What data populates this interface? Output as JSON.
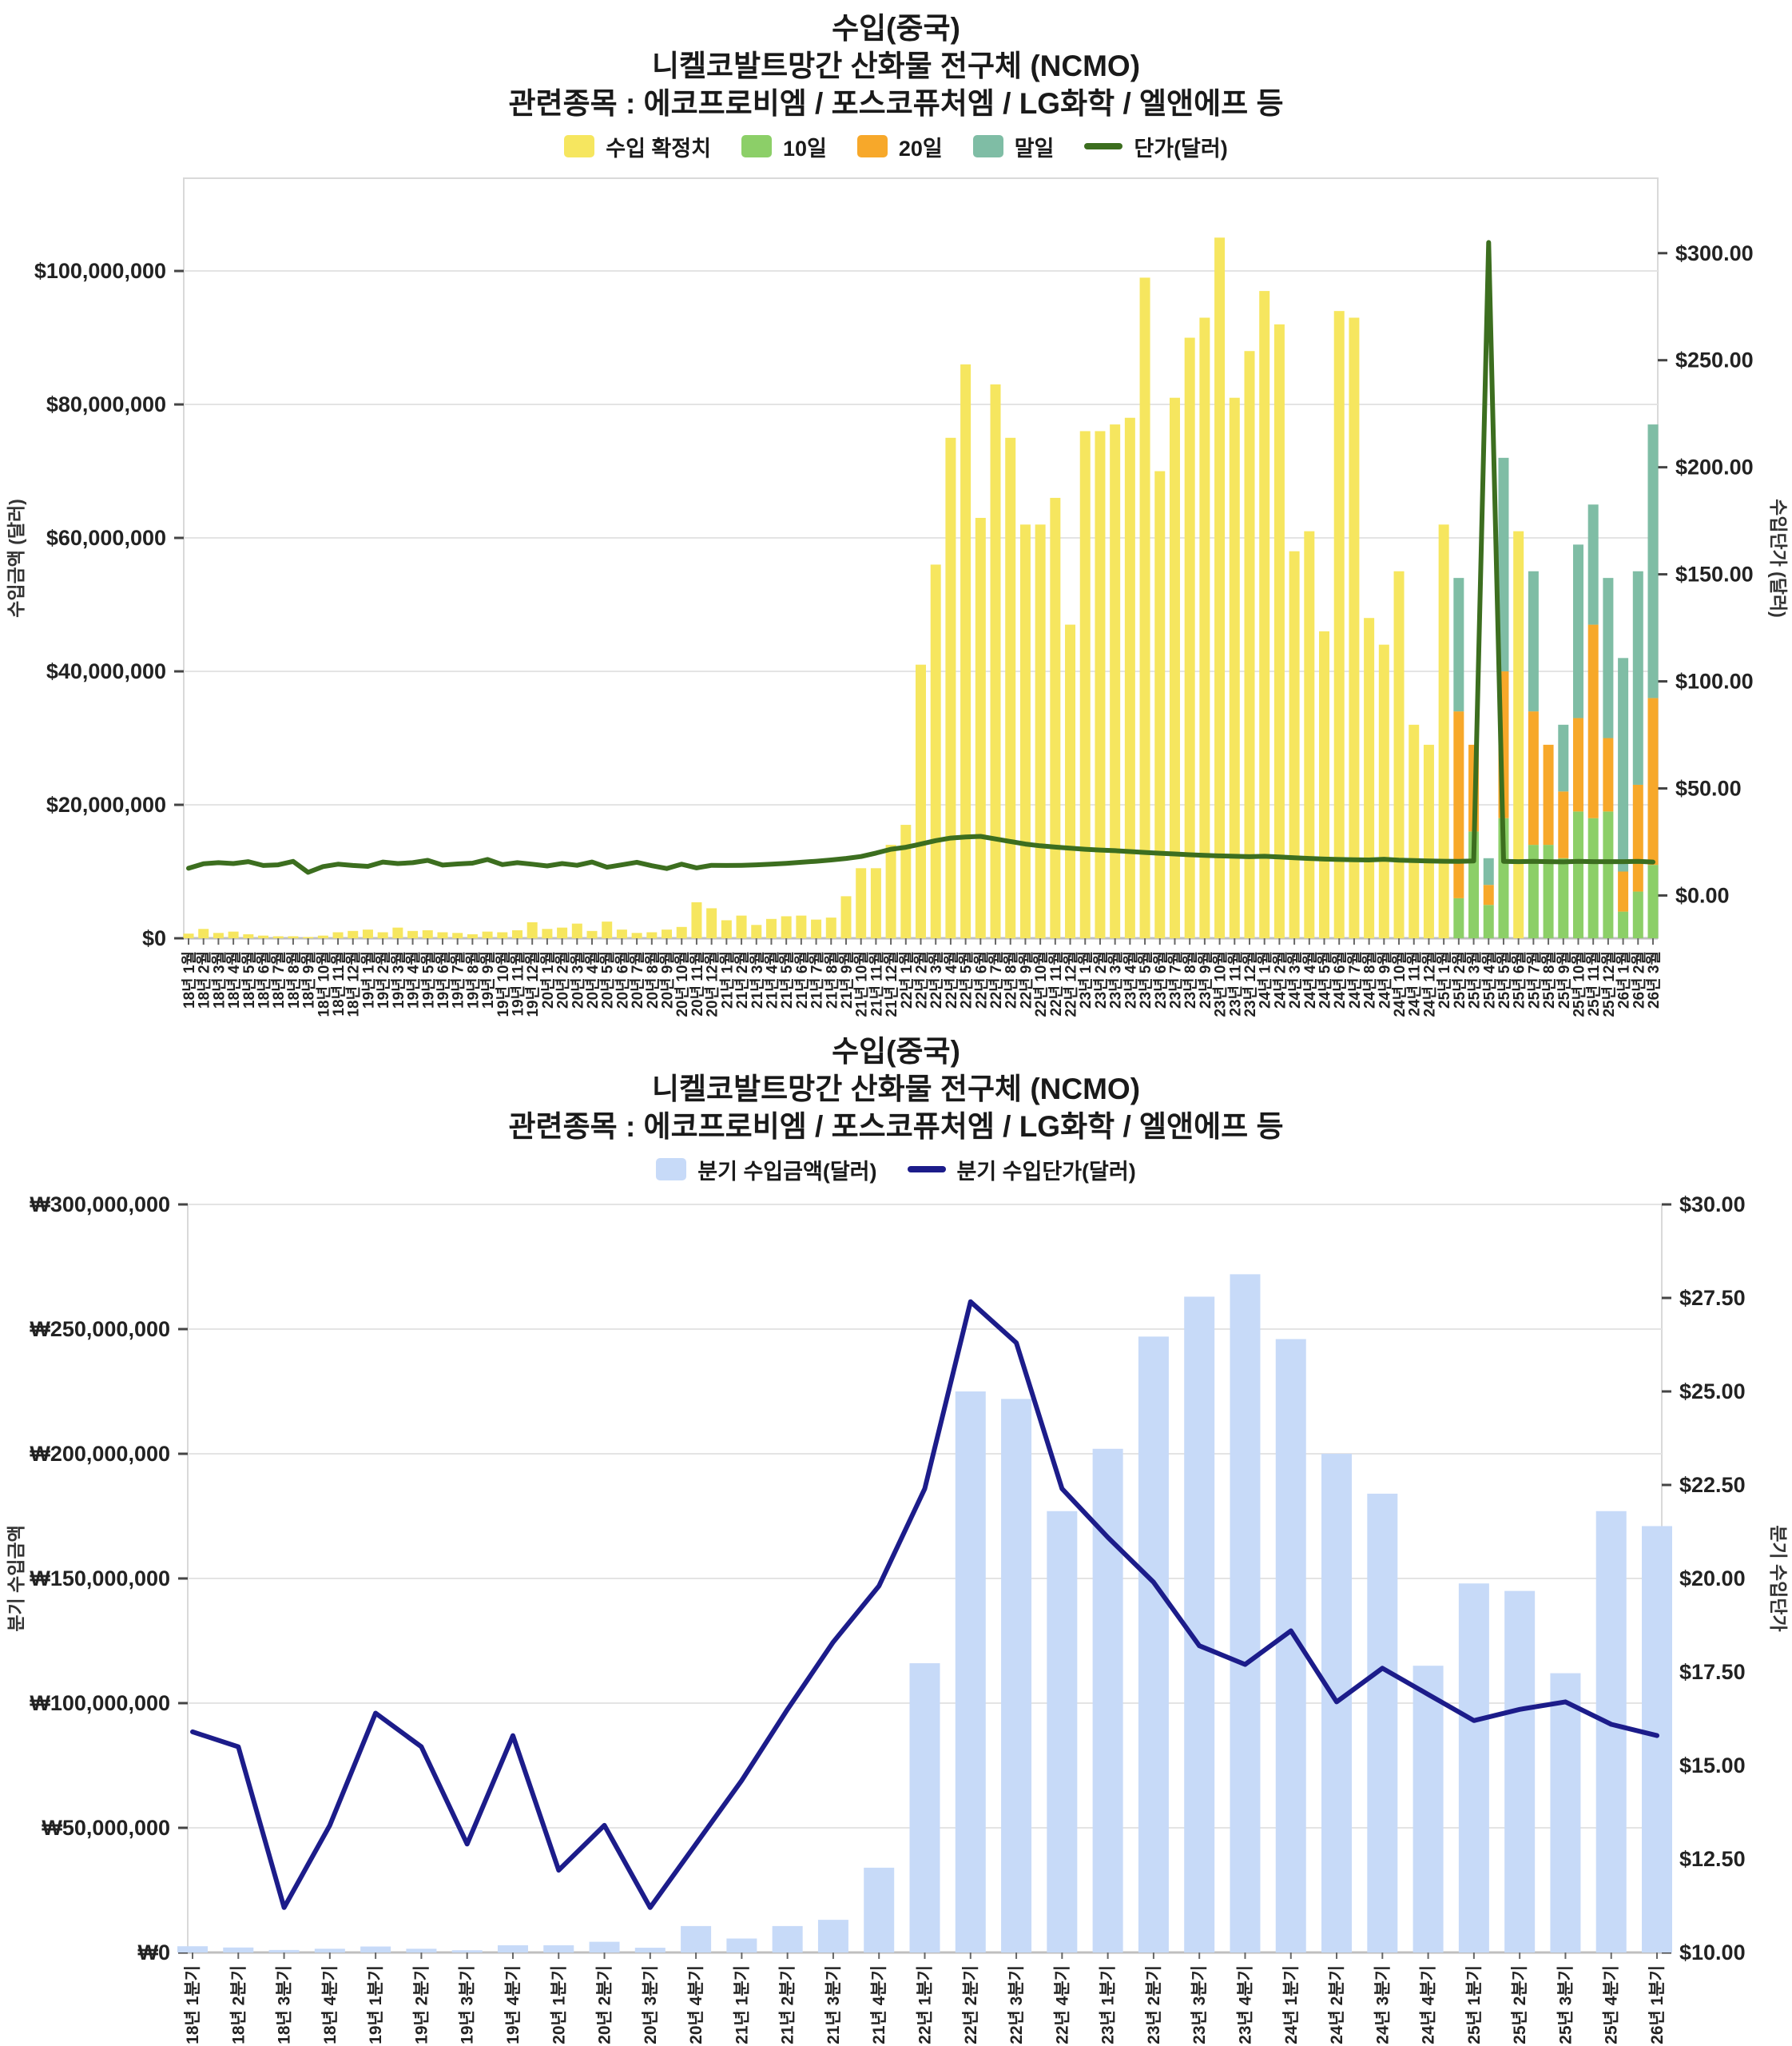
{
  "page_title": "수입(중국) 니켈코발트망간 산화물 전구체 (NCMO)",
  "chart_data": [
    {
      "type": "bar",
      "subtype": "stacked-bar-with-line",
      "title_lines": [
        "수입(중국)",
        "니켈코발트망간 산화물 전구체 (NCMO)",
        "관련종목 : 에코프로비엠 / 포스코퓨처엠 / LG화학 / 엘앤에프 등"
      ],
      "legend_position": "top",
      "grid": true,
      "y_left": {
        "title": "수입금액 (달러)",
        "unit": "USD",
        "ticks": [
          "$0",
          "$20,000,000",
          "$40,000,000",
          "$60,000,000",
          "$80,000,000",
          "$100,000,000"
        ],
        "tick_values_musd": [
          0,
          20,
          40,
          60,
          80,
          100
        ],
        "max_musd": 113.9
      },
      "y_right": {
        "title": "수입단가 (달러)",
        "unit": "USD",
        "ticks": [
          "$0.00",
          "$50.00",
          "$100.00",
          "$150.00",
          "$200.00",
          "$250.00",
          "$300.00"
        ],
        "tick_values_usd": [
          0,
          50,
          100,
          150,
          200,
          250,
          300
        ],
        "domain_usd": [
          -20,
          335
        ]
      },
      "categories": [
        "18년 1월",
        "18년 2월",
        "18년 3월",
        "18년 4월",
        "18년 5월",
        "18년 6월",
        "18년 7월",
        "18년 8월",
        "18년 9월",
        "18년 10월",
        "18년 11월",
        "18년 12월",
        "19년 1월",
        "19년 2월",
        "19년 3월",
        "19년 4월",
        "19년 5월",
        "19년 6월",
        "19년 7월",
        "19년 8월",
        "19년 9월",
        "19년 10월",
        "19년 11월",
        "19년 12월",
        "20년 1월",
        "20년 2월",
        "20년 3월",
        "20년 4월",
        "20년 5월",
        "20년 6월",
        "20년 7월",
        "20년 8월",
        "20년 9월",
        "20년 10월",
        "20년 11월",
        "20년 12월",
        "21년 1월",
        "21년 2월",
        "21년 3월",
        "21년 4월",
        "21년 5월",
        "21년 6월",
        "21년 7월",
        "21년 8월",
        "21년 9월",
        "21년 10월",
        "21년 11월",
        "21년 12월",
        "22년 1월",
        "22년 2월",
        "22년 3월",
        "22년 4월",
        "22년 5월",
        "22년 6월",
        "22년 7월",
        "22년 8월",
        "22년 9월",
        "22년 10월",
        "22년 11월",
        "22년 12월",
        "23년 1월",
        "23년 2월",
        "23년 3월",
        "23년 4월",
        "23년 5월",
        "23년 6월",
        "23년 7월",
        "23년 8월",
        "23년 9월",
        "23년 10월",
        "23년 11월",
        "23년 12월",
        "24년 1월",
        "24년 2월",
        "24년 3월",
        "24년 4월",
        "24년 5월",
        "24년 6월",
        "24년 7월",
        "24년 8월",
        "24년 9월",
        "24년 10월",
        "24년 11월",
        "24년 12월",
        "25년 1월",
        "25년 2월",
        "25년 3월",
        "25년 4월",
        "25년 5월",
        "25년 6월",
        "25년 7월",
        "25년 8월",
        "25년 9월",
        "25년 10월",
        "25년 11월",
        "25년 12월",
        "26년 1월",
        "26년 2월",
        "26년 3월"
      ],
      "series": [
        {
          "name": "수입 확정치",
          "kind": "bar",
          "color": "#F6E65F",
          "unit": "USD millions",
          "values": [
            0.7,
            1.4,
            0.8,
            1.0,
            0.6,
            0.4,
            0.3,
            0.3,
            0.2,
            0.4,
            0.9,
            1.1,
            1.3,
            0.9,
            1.6,
            1.1,
            1.2,
            0.9,
            0.8,
            0.6,
            1.0,
            0.9,
            1.2,
            2.4,
            1.4,
            1.6,
            2.2,
            1.1,
            2.5,
            1.3,
            0.8,
            0.9,
            1.3,
            1.7,
            5.4,
            4.5,
            2.7,
            3.4,
            2.0,
            2.9,
            3.3,
            3.4,
            2.8,
            3.1,
            6.3,
            10.5,
            10.5,
            14.0,
            17,
            41,
            56,
            75,
            86,
            63,
            83,
            75,
            62,
            62,
            66,
            47,
            76,
            76,
            77,
            78,
            99,
            70,
            81,
            90,
            93,
            105,
            81,
            88,
            97,
            92,
            58,
            61,
            46,
            94,
            93,
            48,
            44,
            55,
            32,
            29,
            62,
            0,
            0,
            0,
            0,
            61,
            0,
            0,
            0,
            0,
            0,
            0,
            0,
            0,
            0
          ]
        },
        {
          "name": "10일",
          "kind": "bar",
          "color": "#8CCF68",
          "unit": "USD millions",
          "values": [
            0,
            0,
            0,
            0,
            0,
            0,
            0,
            0,
            0,
            0,
            0,
            0,
            0,
            0,
            0,
            0,
            0,
            0,
            0,
            0,
            0,
            0,
            0,
            0,
            0,
            0,
            0,
            0,
            0,
            0,
            0,
            0,
            0,
            0,
            0,
            0,
            0,
            0,
            0,
            0,
            0,
            0,
            0,
            0,
            0,
            0,
            0,
            0,
            0,
            0,
            0,
            0,
            0,
            0,
            0,
            0,
            0,
            0,
            0,
            0,
            0,
            0,
            0,
            0,
            0,
            0,
            0,
            0,
            0,
            0,
            0,
            0,
            0,
            0,
            0,
            0,
            0,
            0,
            0,
            0,
            0,
            0,
            0,
            0,
            0,
            6,
            16,
            5,
            18,
            0,
            14,
            14,
            12,
            19,
            18,
            19,
            4,
            7,
            11
          ]
        },
        {
          "name": "20일",
          "kind": "bar",
          "color": "#F7A82A",
          "unit": "USD millions",
          "values": [
            0,
            0,
            0,
            0,
            0,
            0,
            0,
            0,
            0,
            0,
            0,
            0,
            0,
            0,
            0,
            0,
            0,
            0,
            0,
            0,
            0,
            0,
            0,
            0,
            0,
            0,
            0,
            0,
            0,
            0,
            0,
            0,
            0,
            0,
            0,
            0,
            0,
            0,
            0,
            0,
            0,
            0,
            0,
            0,
            0,
            0,
            0,
            0,
            0,
            0,
            0,
            0,
            0,
            0,
            0,
            0,
            0,
            0,
            0,
            0,
            0,
            0,
            0,
            0,
            0,
            0,
            0,
            0,
            0,
            0,
            0,
            0,
            0,
            0,
            0,
            0,
            0,
            0,
            0,
            0,
            0,
            0,
            0,
            0,
            0,
            28,
            13,
            3,
            22,
            0,
            20,
            15,
            10,
            14,
            29,
            11,
            6,
            16,
            25
          ]
        },
        {
          "name": "말일",
          "kind": "bar",
          "color": "#7FBDA5",
          "unit": "USD millions",
          "values": [
            0,
            0,
            0,
            0,
            0,
            0,
            0,
            0,
            0,
            0,
            0,
            0,
            0,
            0,
            0,
            0,
            0,
            0,
            0,
            0,
            0,
            0,
            0,
            0,
            0,
            0,
            0,
            0,
            0,
            0,
            0,
            0,
            0,
            0,
            0,
            0,
            0,
            0,
            0,
            0,
            0,
            0,
            0,
            0,
            0,
            0,
            0,
            0,
            0,
            0,
            0,
            0,
            0,
            0,
            0,
            0,
            0,
            0,
            0,
            0,
            0,
            0,
            0,
            0,
            0,
            0,
            0,
            0,
            0,
            0,
            0,
            0,
            0,
            0,
            0,
            0,
            0,
            0,
            0,
            0,
            0,
            0,
            0,
            0,
            0,
            20,
            0,
            4,
            32,
            0,
            21,
            0,
            10,
            26,
            18,
            24,
            32,
            32,
            41
          ]
        },
        {
          "name": "단가(달러)",
          "kind": "line",
          "axis": "right",
          "color": "#3C6E1F",
          "unit": "USD",
          "values": [
            12.7,
            14.8,
            15.3,
            14.9,
            15.8,
            14.0,
            14.3,
            15.9,
            10.8,
            13.5,
            14.6,
            14.0,
            13.6,
            15.6,
            14.9,
            15.3,
            16.4,
            14.2,
            14.7,
            15.1,
            16.8,
            14.4,
            15.3,
            14.6,
            13.8,
            14.9,
            14.1,
            15.6,
            13.2,
            14.3,
            15.5,
            13.9,
            12.6,
            14.6,
            12.9,
            14.1,
            14.0,
            14.1,
            14.3,
            14.6,
            15.0,
            15.5,
            16.0,
            16.6,
            17.3,
            18.2,
            19.8,
            21.6,
            22.5,
            24.0,
            25.6,
            26.8,
            27.3,
            27.6,
            26.4,
            25.2,
            24.0,
            23.2,
            22.6,
            22.1,
            21.6,
            21.2,
            20.9,
            20.5,
            20.1,
            19.7,
            19.4,
            19.0,
            18.7,
            18.5,
            18.3,
            18.1,
            18.3,
            18.0,
            17.6,
            17.3,
            17.0,
            16.8,
            16.7,
            16.6,
            16.9,
            16.5,
            16.3,
            16.1,
            16.0,
            15.9,
            16.1,
            305.0,
            15.9,
            15.8,
            15.9,
            15.8,
            15.7,
            15.9,
            15.8,
            15.8,
            15.8,
            15.9,
            15.6
          ]
        }
      ]
    },
    {
      "type": "bar",
      "subtype": "bar-with-line",
      "title_lines": [
        "수입(중국)",
        "니켈코발트망간 산화물 전구체 (NCMO)",
        "관련종목 : 에코프로비엠 / 포스코퓨처엠 / LG화학 / 엘앤에프 등"
      ],
      "legend_position": "top",
      "grid": true,
      "y_left": {
        "title": "분기 수입금액",
        "unit": "KRW",
        "ticks": [
          "₩0",
          "₩50,000,000",
          "₩100,000,000",
          "₩150,000,000",
          "₩200,000,000",
          "₩250,000,000",
          "₩300,000,000"
        ],
        "tick_values_mkrw": [
          0,
          50,
          100,
          150,
          200,
          250,
          300
        ],
        "max_mkrw": 300
      },
      "y_right": {
        "title": "분기 수입단가",
        "unit": "USD",
        "ticks": [
          "$10.00",
          "$12.50",
          "$15.00",
          "$17.50",
          "$20.00",
          "$22.50",
          "$25.00",
          "$27.50",
          "$30.00"
        ],
        "tick_values_usd": [
          10,
          12.5,
          15,
          17.5,
          20,
          22.5,
          25,
          27.5,
          30
        ],
        "domain_usd": [
          10,
          30
        ]
      },
      "categories": [
        "18년 1분기",
        "18년 2분기",
        "18년 3분기",
        "18년 4분기",
        "19년 1분기",
        "19년 2분기",
        "19년 3분기",
        "19년 4분기",
        "20년 1분기",
        "20년 2분기",
        "20년 3분기",
        "20년 4분기",
        "21년 1분기",
        "21년 2분기",
        "21년 3분기",
        "21년 4분기",
        "22년 1분기",
        "22년 2분기",
        "22년 3분기",
        "22년 4분기",
        "23년 1분기",
        "23년 2분기",
        "23년 3분기",
        "23년 4분기",
        "24년 1분기",
        "24년 2분기",
        "24년 3분기",
        "24년 4분기",
        "25년 1분기",
        "25년 2분기",
        "25년 3분기",
        "25년 4분기",
        "26년 1분기"
      ],
      "series": [
        {
          "name": "분기 수입금액(달러)",
          "kind": "bar",
          "color": "#C7DAF8",
          "unit": "KRW millions",
          "values": [
            2.5,
            2.0,
            1.0,
            1.5,
            2.4,
            1.5,
            0.9,
            2.9,
            2.9,
            4.3,
            1.9,
            10.6,
            5.6,
            10.6,
            13.1,
            34.0,
            116,
            225,
            222,
            177,
            202,
            247,
            263,
            272,
            246,
            200,
            184,
            115,
            148,
            145,
            112,
            177,
            171
          ]
        },
        {
          "name": "분기 수입단가(달러)",
          "kind": "line",
          "axis": "right",
          "color": "#1C1C8A",
          "unit": "USD",
          "values": [
            15.9,
            15.5,
            11.2,
            13.4,
            16.4,
            15.5,
            12.9,
            15.8,
            12.2,
            13.4,
            11.2,
            12.9,
            14.6,
            16.5,
            18.3,
            19.8,
            22.4,
            27.4,
            26.3,
            22.4,
            21.1,
            19.9,
            18.2,
            17.7,
            18.6,
            16.7,
            17.6,
            16.9,
            16.2,
            16.5,
            16.7,
            16.1,
            15.8
          ]
        }
      ]
    }
  ],
  "colors": {
    "grid": "#E4E4E4",
    "plot_border": "#D9D9D9",
    "axis_line": "#BFBFBF",
    "text": "#1a1a1a"
  }
}
